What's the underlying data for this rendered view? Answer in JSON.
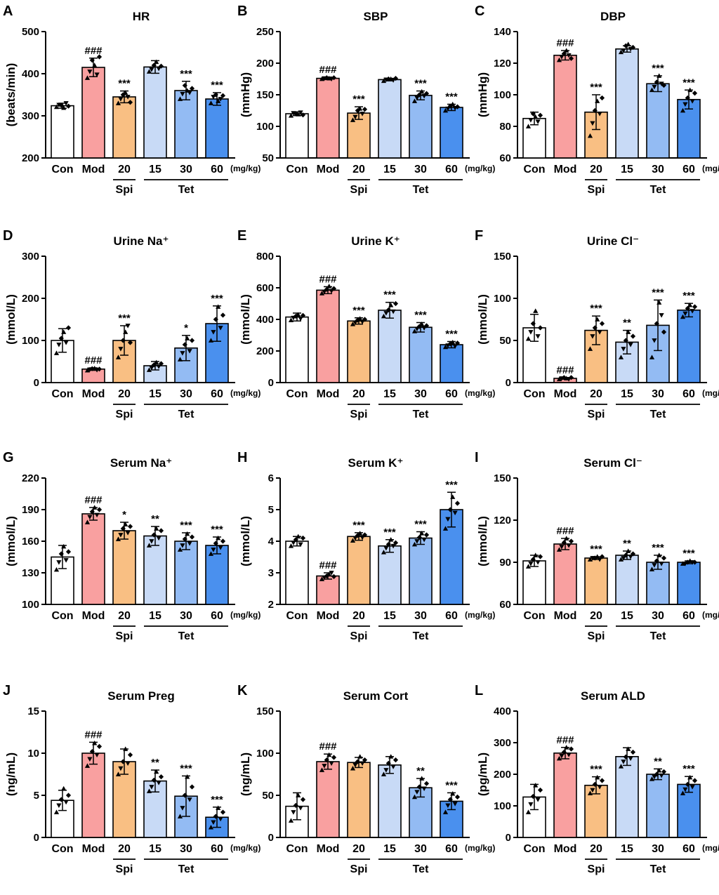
{
  "figure": {
    "x_units": "(mg/kg)",
    "group_colors": [
      "#ffffff",
      "#f9a0a0",
      "#f9bf83",
      "#c8daf6",
      "#93bbf3",
      "#4a90ee"
    ],
    "group_labels": [
      "Spi",
      "Tet"
    ]
  },
  "chart_data": [
    {
      "letter": "A",
      "type": "bar",
      "title": "HR",
      "ylabel": "(beats/min)",
      "ylim": [
        200,
        500
      ],
      "yticks": [
        "200",
        "300",
        "400",
        "500"
      ],
      "categories": [
        "Con",
        "Mod",
        "20",
        "15",
        "30",
        "60"
      ],
      "values": [
        324,
        415,
        345,
        416,
        360,
        340
      ],
      "errors": [
        6,
        22,
        14,
        15,
        22,
        15
      ],
      "annotations": [
        "",
        "###",
        "***",
        "",
        "***",
        "***"
      ],
      "points": [
        [
          321,
          326,
          325,
          319,
          330,
          323
        ],
        [
          390,
          405,
          432,
          420,
          398,
          440
        ],
        [
          330,
          340,
          350,
          355,
          345,
          332
        ],
        [
          405,
          410,
          420,
          428,
          412,
          418
        ],
        [
          340,
          352,
          372,
          360,
          355,
          365
        ],
        [
          330,
          345,
          350,
          335,
          340,
          348
        ]
      ]
    },
    {
      "letter": "B",
      "type": "bar",
      "title": "SBP",
      "ylabel": "(mmHg)",
      "ylim": [
        50,
        250
      ],
      "yticks": [
        "50",
        "100",
        "150",
        "200",
        "250"
      ],
      "categories": [
        "Con",
        "Mod",
        "20",
        "15",
        "30",
        "60"
      ],
      "values": [
        120,
        176,
        121,
        174,
        149,
        130
      ],
      "errors": [
        3,
        2,
        10,
        2,
        7,
        5
      ],
      "annotations": [
        "",
        "###",
        "***",
        "",
        "***",
        "***"
      ],
      "points": [
        [
          117,
          121,
          120,
          119,
          122,
          118
        ],
        [
          175,
          176,
          177,
          176,
          175,
          177
        ],
        [
          110,
          115,
          125,
          128,
          120,
          127
        ],
        [
          172,
          174,
          175,
          175,
          173,
          176
        ],
        [
          140,
          145,
          150,
          155,
          148,
          152
        ],
        [
          125,
          128,
          132,
          135,
          129,
          131
        ]
      ]
    },
    {
      "letter": "C",
      "type": "bar",
      "title": "DBP",
      "ylabel": "(mmHg)",
      "ylim": [
        60,
        140
      ],
      "yticks": [
        "60",
        "80",
        "100",
        "120",
        "140"
      ],
      "categories": [
        "Con",
        "Mod",
        "20",
        "15",
        "30",
        "60"
      ],
      "values": [
        85,
        125,
        89,
        129,
        107,
        97
      ],
      "errors": [
        4,
        3,
        11,
        2,
        5,
        6
      ],
      "annotations": [
        "",
        "###",
        "***",
        "",
        "***",
        "***"
      ],
      "points": [
        [
          80,
          84,
          88,
          86,
          83,
          87
        ],
        [
          122,
          124,
          126,
          128,
          125,
          123
        ],
        [
          74,
          82,
          90,
          96,
          88,
          98
        ],
        [
          127,
          128,
          131,
          132,
          129,
          130
        ],
        [
          103,
          105,
          108,
          112,
          107,
          106
        ],
        [
          90,
          94,
          98,
          103,
          96,
          101
        ]
      ]
    },
    {
      "letter": "D",
      "type": "bar",
      "title": "Urine Na⁺",
      "ylabel": "(mmol/L)",
      "ylim": [
        0,
        300
      ],
      "yticks": [
        "0",
        "100",
        "200",
        "300"
      ],
      "categories": [
        "Con",
        "Mod",
        "20",
        "15",
        "30",
        "60"
      ],
      "values": [
        100,
        32,
        100,
        40,
        82,
        140
      ],
      "errors": [
        28,
        3,
        35,
        10,
        30,
        42
      ],
      "annotations": [
        "",
        "###",
        "***",
        "",
        "*",
        "***"
      ],
      "points": [
        [
          70,
          90,
          105,
          120,
          95,
          130
        ],
        [
          29,
          31,
          33,
          34,
          30,
          32
        ],
        [
          60,
          80,
          100,
          120,
          135,
          95
        ],
        [
          30,
          35,
          42,
          48,
          38,
          45
        ],
        [
          55,
          70,
          90,
          105,
          75,
          100
        ],
        [
          100,
          120,
          150,
          180,
          130,
          160
        ]
      ]
    },
    {
      "letter": "E",
      "type": "bar",
      "title": "Urine K⁺",
      "ylabel": "(mmol/L)",
      "ylim": [
        0,
        800
      ],
      "yticks": [
        "0",
        "200",
        "400",
        "600",
        "800"
      ],
      "categories": [
        "Con",
        "Mod",
        "20",
        "15",
        "30",
        "60"
      ],
      "values": [
        415,
        585,
        390,
        458,
        350,
        240
      ],
      "errors": [
        25,
        22,
        20,
        50,
        30,
        20
      ],
      "annotations": [
        "",
        "###",
        "***",
        "***",
        "***",
        "***"
      ],
      "points": [
        [
          395,
          410,
          420,
          430,
          405,
          425
        ],
        [
          565,
          575,
          590,
          610,
          580,
          595
        ],
        [
          370,
          380,
          395,
          405,
          385,
          400
        ],
        [
          420,
          440,
          460,
          490,
          450,
          500
        ],
        [
          325,
          340,
          355,
          370,
          345,
          360
        ],
        [
          225,
          235,
          245,
          255,
          230,
          250
        ]
      ]
    },
    {
      "letter": "F",
      "type": "bar",
      "title": "Urine Cl⁻",
      "ylabel": "(mmol/L)",
      "ylim": [
        0,
        150
      ],
      "yticks": [
        "0",
        "50",
        "100",
        "150"
      ],
      "categories": [
        "Con",
        "Mod",
        "20",
        "15",
        "30",
        "60"
      ],
      "values": [
        65,
        5,
        62,
        48,
        68,
        86
      ],
      "errors": [
        16,
        1,
        17,
        14,
        30,
        8
      ],
      "annotations": [
        "",
        "###",
        "***",
        "**",
        "***",
        "***"
      ],
      "points": [
        [
          52,
          60,
          70,
          85,
          55,
          65
        ],
        [
          4,
          5,
          6,
          5,
          4,
          6
        ],
        [
          40,
          55,
          65,
          75,
          60,
          70
        ],
        [
          30,
          40,
          50,
          60,
          45,
          55
        ],
        [
          30,
          50,
          70,
          95,
          80,
          60
        ],
        [
          78,
          82,
          88,
          92,
          85,
          90
        ]
      ]
    },
    {
      "letter": "G",
      "type": "bar",
      "title": "Serum Na⁺",
      "ylabel": "(mmol/L)",
      "ylim": [
        100,
        220
      ],
      "yticks": [
        "100",
        "130",
        "160",
        "190",
        "220"
      ],
      "categories": [
        "Con",
        "Mod",
        "20",
        "15",
        "30",
        "60"
      ],
      "values": [
        145,
        186,
        170,
        165,
        160,
        156
      ],
      "errors": [
        11,
        6,
        8,
        9,
        8,
        8
      ],
      "annotations": [
        "",
        "###",
        "*",
        "**",
        "***",
        "***"
      ],
      "points": [
        [
          133,
          140,
          148,
          155,
          142,
          150
        ],
        [
          178,
          183,
          188,
          192,
          185,
          190
        ],
        [
          162,
          166,
          172,
          176,
          168,
          174
        ],
        [
          156,
          160,
          166,
          172,
          163,
          170
        ],
        [
          152,
          156,
          162,
          167,
          158,
          164
        ],
        [
          148,
          152,
          158,
          163,
          154,
          160
        ]
      ]
    },
    {
      "letter": "H",
      "type": "bar",
      "title": "Serum K⁺",
      "ylabel": "(mmol/L)",
      "ylim": [
        2,
        6
      ],
      "yticks": [
        "2",
        "3",
        "4",
        "5",
        "6"
      ],
      "categories": [
        "Con",
        "Mod",
        "20",
        "15",
        "30",
        "60"
      ],
      "values": [
        4.0,
        2.9,
        4.15,
        3.85,
        4.1,
        5.0
      ],
      "errors": [
        0.15,
        0.1,
        0.12,
        0.2,
        0.2,
        0.55
      ],
      "annotations": [
        "",
        "###",
        "***",
        "***",
        "***",
        "***"
      ],
      "points": [
        [
          3.85,
          3.95,
          4.05,
          4.15,
          3.9,
          4.1
        ],
        [
          2.8,
          2.85,
          2.9,
          2.95,
          3.0,
          2.88
        ],
        [
          4.02,
          4.1,
          4.18,
          4.25,
          4.12,
          4.2
        ],
        [
          3.65,
          3.78,
          3.9,
          4.05,
          3.85,
          3.95
        ],
        [
          3.9,
          4.0,
          4.12,
          4.25,
          4.05,
          4.2
        ],
        [
          4.4,
          4.7,
          5.0,
          5.4,
          4.9,
          5.2
        ]
      ]
    },
    {
      "letter": "I",
      "type": "bar",
      "title": "Serum Cl⁻",
      "ylabel": "(mmol/L)",
      "ylim": [
        60,
        150
      ],
      "yticks": [
        "60",
        "90",
        "120",
        "150"
      ],
      "categories": [
        "Con",
        "Mod",
        "20",
        "15",
        "30",
        "60"
      ],
      "values": [
        91,
        103,
        93,
        95,
        90,
        90
      ],
      "errors": [
        4,
        4,
        1,
        3,
        5,
        1
      ],
      "annotations": [
        "",
        "###",
        "***",
        "**",
        "***",
        "***"
      ],
      "points": [
        [
          87,
          89,
          92,
          95,
          90,
          94
        ],
        [
          99,
          101,
          104,
          107,
          102,
          105
        ],
        [
          92,
          93,
          93,
          94,
          92,
          94
        ],
        [
          92,
          93,
          95,
          98,
          94,
          96
        ],
        [
          85,
          88,
          91,
          95,
          89,
          93
        ],
        [
          89,
          89,
          90,
          91,
          90,
          90
        ]
      ]
    },
    {
      "letter": "J",
      "type": "bar",
      "title": "Serum Preg",
      "ylabel": "(ng/mL)",
      "ylim": [
        0,
        15
      ],
      "yticks": [
        "0",
        "5",
        "10",
        "15"
      ],
      "categories": [
        "Con",
        "Mod",
        "20",
        "15",
        "30",
        "60"
      ],
      "values": [
        4.4,
        10.0,
        9.0,
        6.7,
        4.9,
        2.4
      ],
      "errors": [
        1.2,
        1.3,
        1.5,
        1.3,
        2.4,
        1.2
      ],
      "annotations": [
        "",
        "###",
        "",
        "**",
        "***",
        "***"
      ],
      "points": [
        [
          3.0,
          3.8,
          4.5,
          5.8,
          4.2,
          5.0
        ],
        [
          8.5,
          9.3,
          10.2,
          11.2,
          9.8,
          10.8
        ],
        [
          7.5,
          8.2,
          9.0,
          10.5,
          8.8,
          9.8
        ],
        [
          5.5,
          6.0,
          6.8,
          7.8,
          6.5,
          7.2
        ],
        [
          2.5,
          3.5,
          5.0,
          7.2,
          4.5,
          6.0
        ],
        [
          1.2,
          1.8,
          2.5,
          3.5,
          2.2,
          3.0
        ]
      ]
    },
    {
      "letter": "K",
      "type": "bar",
      "title": "Serum Cort",
      "ylabel": "(ng/mL)",
      "ylim": [
        0,
        150
      ],
      "yticks": [
        "0",
        "50",
        "100",
        "150"
      ],
      "categories": [
        "Con",
        "Mod",
        "20",
        "15",
        "30",
        "60"
      ],
      "values": [
        37,
        90,
        89,
        86,
        59,
        43
      ],
      "errors": [
        16,
        9,
        6,
        10,
        11,
        10
      ],
      "annotations": [
        "",
        "###",
        "",
        "",
        "**",
        "***"
      ],
      "points": [
        [
          20,
          30,
          38,
          50,
          35,
          45
        ],
        [
          80,
          85,
          92,
          98,
          88,
          95
        ],
        [
          82,
          86,
          90,
          96,
          88,
          92
        ],
        [
          75,
          80,
          88,
          96,
          84,
          92
        ],
        [
          48,
          54,
          60,
          70,
          58,
          64
        ],
        [
          30,
          38,
          45,
          52,
          40,
          48
        ]
      ]
    },
    {
      "letter": "L",
      "type": "bar",
      "title": "Serum ALD",
      "ylabel": "(pg/mL)",
      "ylim": [
        0,
        400
      ],
      "yticks": [
        "0",
        "100",
        "200",
        "300",
        "400"
      ],
      "categories": [
        "Con",
        "Mod",
        "20",
        "15",
        "30",
        "60"
      ],
      "values": [
        128,
        267,
        165,
        256,
        200,
        168
      ],
      "errors": [
        40,
        18,
        27,
        28,
        17,
        25
      ],
      "annotations": [
        "",
        "###",
        "***",
        "",
        "**",
        "***"
      ],
      "points": [
        [
          80,
          105,
          130,
          165,
          120,
          150
        ],
        [
          250,
          258,
          270,
          285,
          262,
          280
        ],
        [
          140,
          150,
          168,
          190,
          160,
          180
        ],
        [
          225,
          240,
          255,
          280,
          250,
          270
        ],
        [
          185,
          192,
          200,
          212,
          196,
          208
        ],
        [
          140,
          152,
          168,
          190,
          160,
          180
        ]
      ]
    }
  ]
}
